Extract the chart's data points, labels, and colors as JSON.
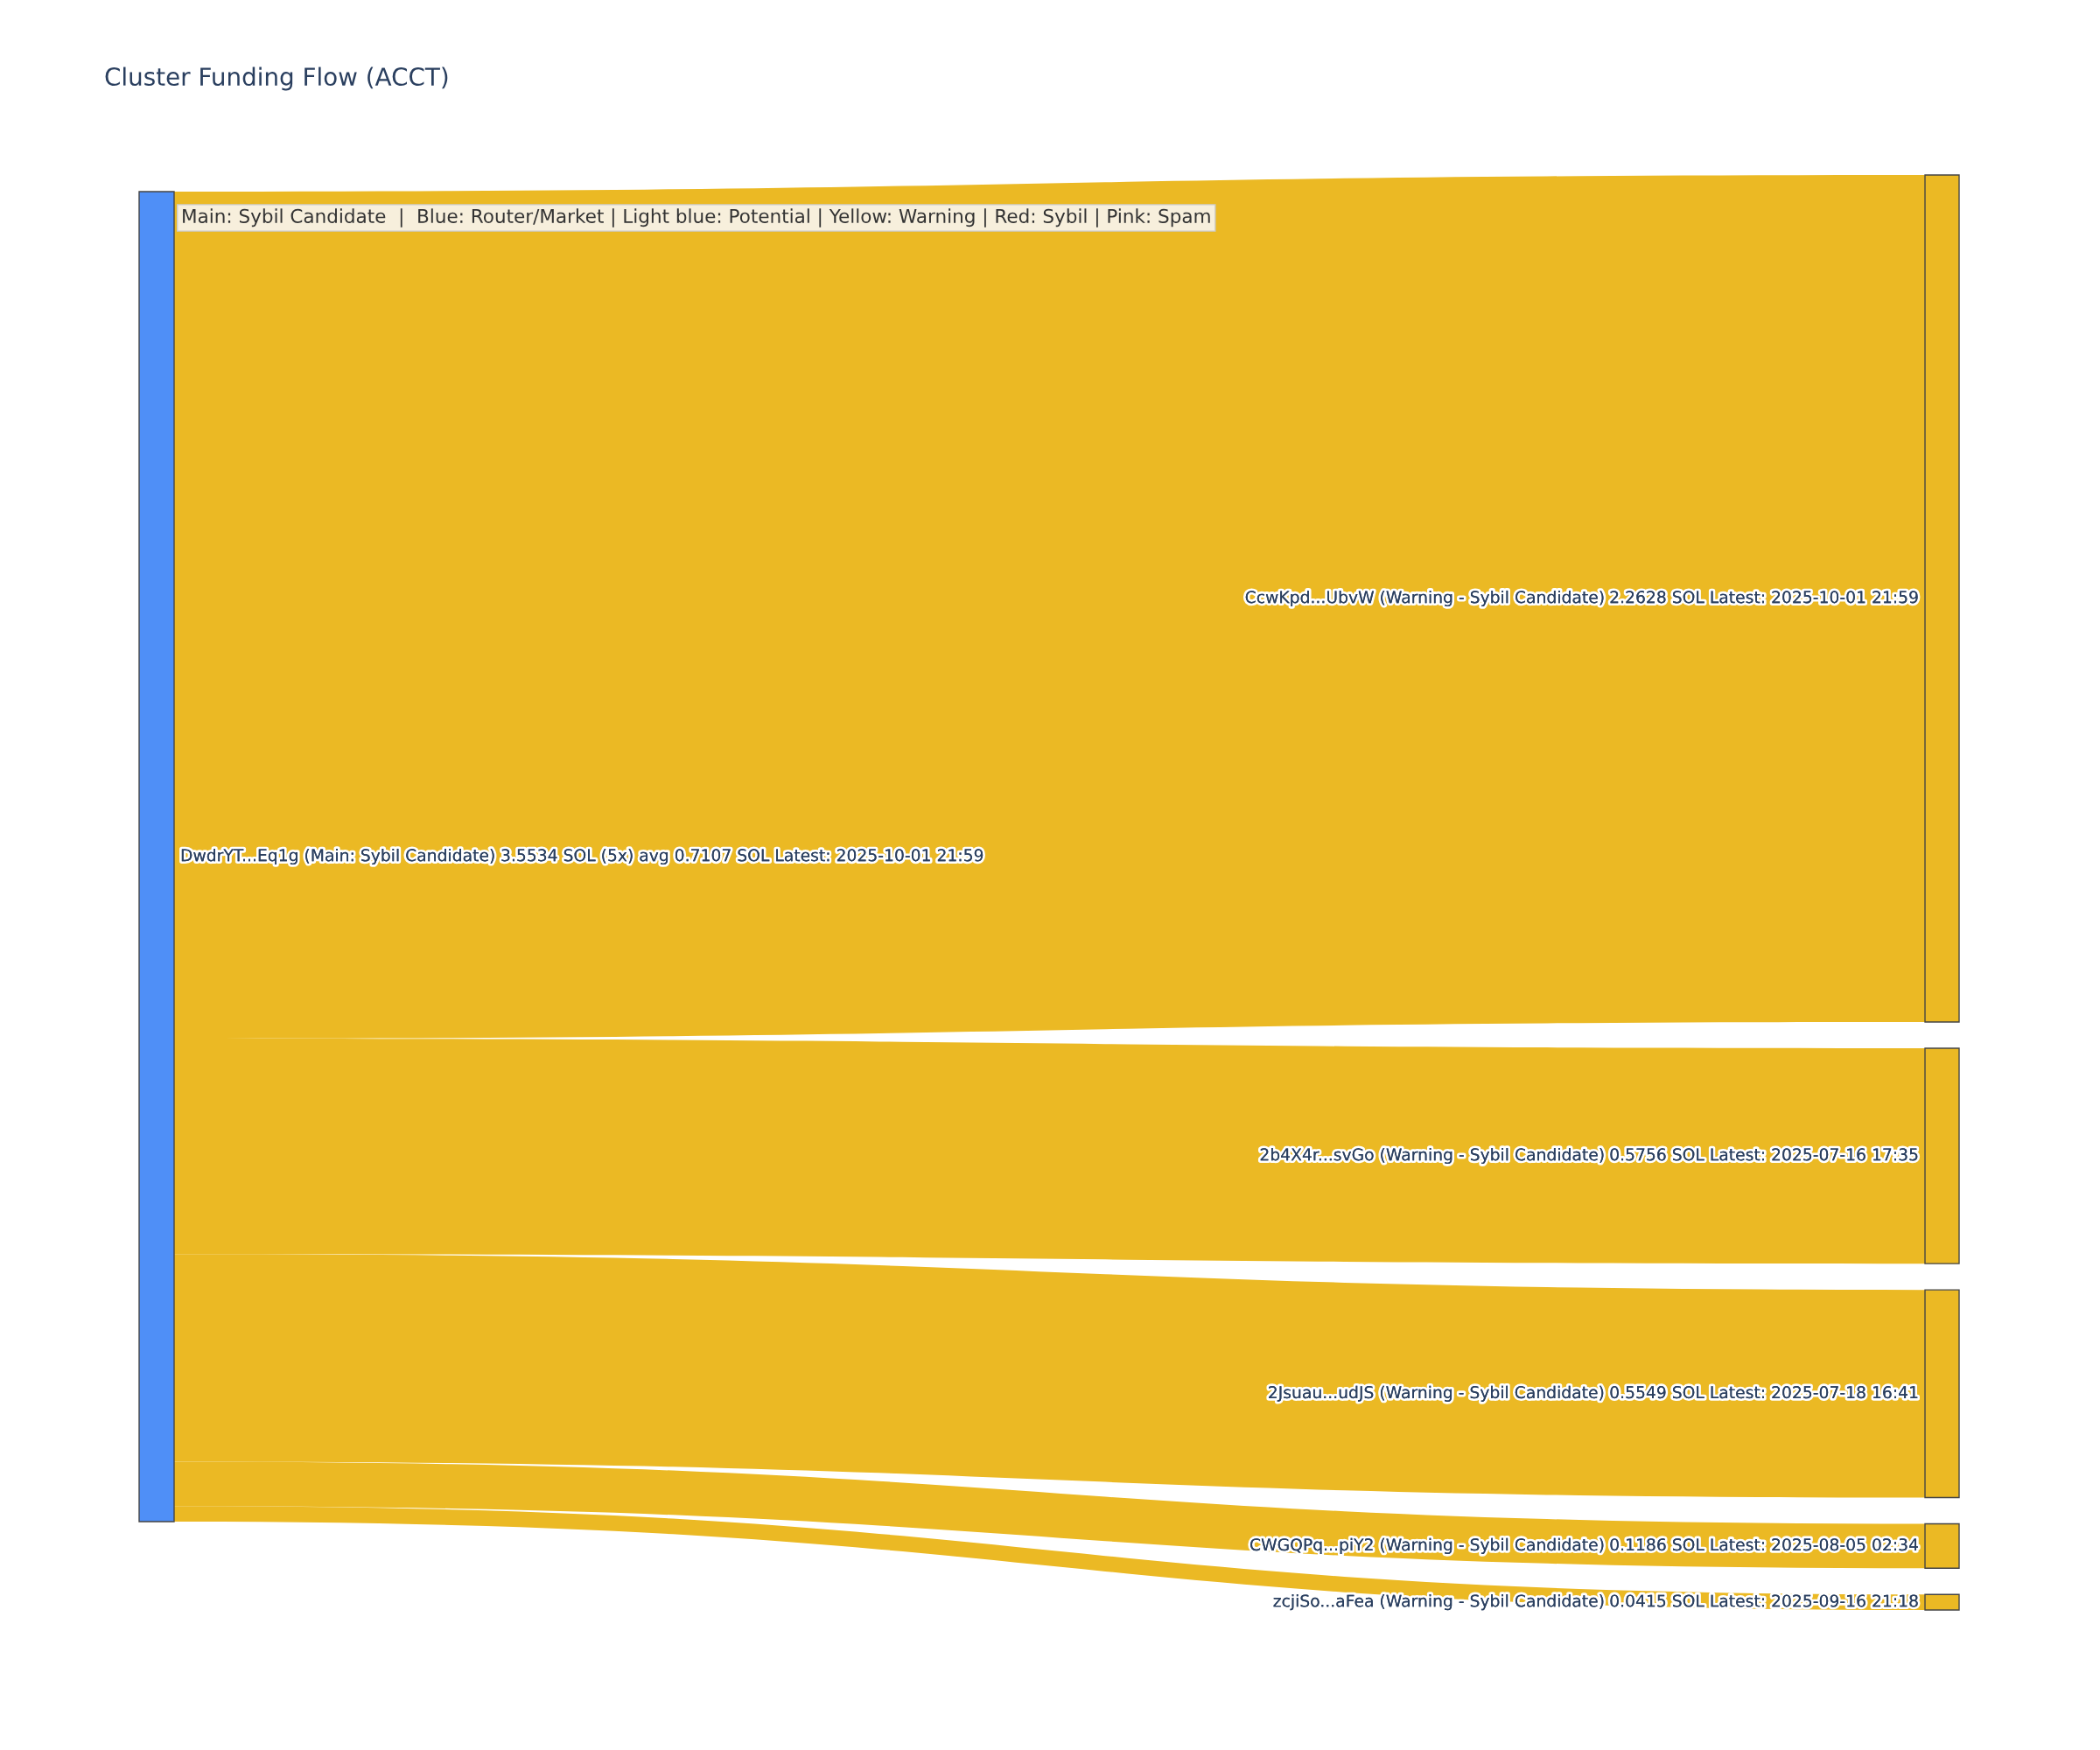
{
  "chart_data": {
    "type": "other",
    "title": "Cluster Funding Flow (ACCT)",
    "annotations": [
      "Main: Sybil Candidate  |  Blue: Router/Market | Light blue: Potential | Yellow: Warning | Red: Sybil | Pink: Spam"
    ],
    "categories": [
      "CcwKpd...UbvW (Warning - Sybil Candidate)",
      "2b4X4r...svGo (Warning - Sybil Candidate)",
      "2Jsuau...udJS (Warning - Sybil Candidate)",
      "CWGQPq...piY2 (Warning - Sybil Candidate)",
      "zcjiSo...aFea (Warning - Sybil Candidate)"
    ],
    "colors": [
      "#ebb924",
      "#ebb924",
      "#ebb924",
      "#ebb924",
      "#ebb924"
    ],
    "totals": [
      "3.5534 SOL (5x) avg 0.7107 SOL Latest: 2025-10-01 21:59"
    ],
    "series": [
      {
        "name": "DwdrYT...Eq1g (Main: Sybil Candidate)",
        "color": "#ebb924",
        "values": [
          2.2628,
          0.5756,
          0.5549,
          0.1186,
          0.0415
        ],
        "value_labels": [
          "2.2628 SOL Latest: 2025-10-01 21:59",
          "0.5756 SOL Latest: 2025-07-16 17:35",
          "0.5549 SOL Latest: 2025-07-18 16:41",
          "0.1186 SOL Latest: 2025-08-05 02:34",
          "0.0415 SOL Latest: 2025-09-16 21:18"
        ]
      }
    ]
  }
}
